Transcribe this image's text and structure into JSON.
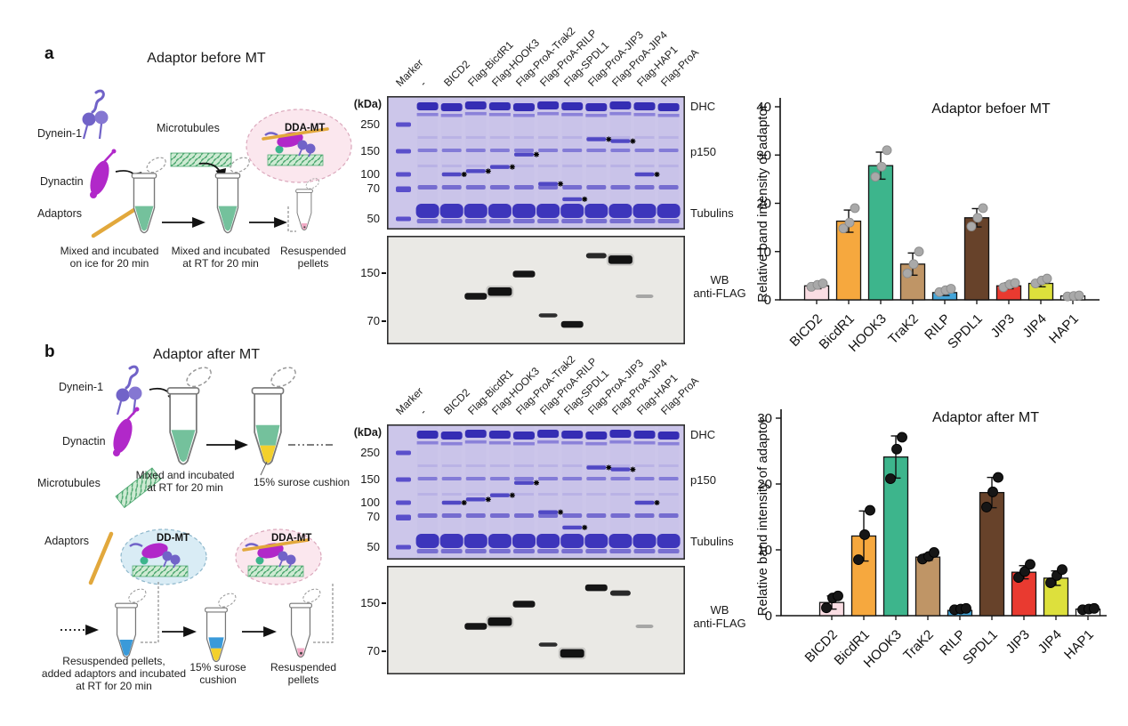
{
  "figure": {
    "panel_a": {
      "label": "a",
      "title": "Adaptor before MT",
      "schematic": {
        "component1": "Dynein-1",
        "component2": "Dynactin",
        "component3": "Adaptors",
        "microtubules": "Microtubules",
        "complex": "DDA-MT",
        "step1": "Mixed and incubated\non ice for 20 min",
        "step2": "Mixed and incubated\nat RT for 20 min",
        "step3": "Resuspended\npellets"
      },
      "gel": {
        "kda_unit": "(kDa)",
        "lane_labels": [
          "Marker",
          "-",
          "BICD2",
          "Flag-BicdR1",
          "Flag-HOOK3",
          "Flag-ProA-Trak2",
          "Flag-ProA-RILP",
          "Flag-SPDL1",
          "Flag-ProA-JIP3",
          "Flag-ProA-JIP4",
          "Flag-HAP1",
          "Flag-ProA"
        ],
        "coomassie_ticks": [
          250,
          150,
          100,
          70,
          50
        ],
        "band_labels": [
          "DHC",
          "p150",
          "Tubulins"
        ],
        "adaptor_bands": [
          {
            "lane": 2,
            "kda": 100
          },
          {
            "lane": 3,
            "kda": 107
          },
          {
            "lane": 4,
            "kda": 116
          },
          {
            "lane": 5,
            "kda": 143
          },
          {
            "lane": 6,
            "kda": 80
          },
          {
            "lane": 7,
            "kda": 63
          },
          {
            "lane": 8,
            "kda": 195
          },
          {
            "lane": 9,
            "kda": 188
          },
          {
            "lane": 10,
            "kda": 100
          }
        ],
        "wb_ticks": [
          150,
          70
        ],
        "wb_label": "WB\nanti-FLAG",
        "wb_bands": [
          {
            "lane": 3,
            "kda": 100,
            "s": "strong"
          },
          {
            "lane": 4,
            "kda": 110,
            "s": "wide"
          },
          {
            "lane": 5,
            "kda": 148,
            "s": "strong"
          },
          {
            "lane": 6,
            "kda": 77,
            "s": "thin"
          },
          {
            "lane": 7,
            "kda": 67,
            "s": "strong"
          },
          {
            "lane": 8,
            "kda": 193,
            "s": "medium"
          },
          {
            "lane": 9,
            "kda": 183,
            "s": "wide"
          },
          {
            "lane": 10,
            "kda": 100,
            "s": "faint"
          }
        ]
      }
    },
    "panel_b": {
      "label": "b",
      "title": "Adaptor after MT",
      "schematic": {
        "component1": "Dynein-1",
        "component2": "Dynactin",
        "component3": "Microtubules",
        "adaptors": "Adaptors",
        "complex1": "DD-MT",
        "complex2": "DDA-MT",
        "step1": "Mixed and incubated\nat RT for 20 min",
        "cushion1": "15% surose cushion",
        "step2": "Resuspended pellets,\nadded adaptors and incubated\nat RT for 20 min",
        "cushion2": "15% surose\ncushion",
        "step3": "Resuspended\npellets"
      },
      "gel": {
        "kda_unit": "(kDa)",
        "lane_labels": [
          "Marker",
          "-",
          "BICD2",
          "Flag-BicdR1",
          "Flag-HOOK3",
          "Flag-ProA-Trak2",
          "Flag-ProA-RILP",
          "Flag-SPDL1",
          "Flag-ProA-JIP3",
          "Flag-ProA-JIP4",
          "Flag-HAP1",
          "Flag-ProA"
        ],
        "coomassie_ticks": [
          250,
          150,
          100,
          70,
          50
        ],
        "band_labels": [
          "DHC",
          "p150",
          "Tubulins"
        ],
        "adaptor_bands": [
          {
            "lane": 2,
            "kda": 100
          },
          {
            "lane": 3,
            "kda": 107
          },
          {
            "lane": 4,
            "kda": 116
          },
          {
            "lane": 5,
            "kda": 143
          },
          {
            "lane": 6,
            "kda": 80
          },
          {
            "lane": 7,
            "kda": 63
          },
          {
            "lane": 8,
            "kda": 195
          },
          {
            "lane": 9,
            "kda": 188
          },
          {
            "lane": 10,
            "kda": 100
          }
        ],
        "wb_ticks": [
          150,
          70
        ],
        "wb_label": "WB\nanti-FLAG",
        "wb_bands": [
          {
            "lane": 3,
            "kda": 100,
            "s": "strong"
          },
          {
            "lane": 4,
            "kda": 110,
            "s": "wide"
          },
          {
            "lane": 5,
            "kda": 148,
            "s": "strong"
          },
          {
            "lane": 6,
            "kda": 78,
            "s": "thin"
          },
          {
            "lane": 7,
            "kda": 68,
            "s": "wide"
          },
          {
            "lane": 8,
            "kda": 188,
            "s": "strong"
          },
          {
            "lane": 9,
            "kda": 175,
            "s": "medium"
          },
          {
            "lane": 10,
            "kda": 100,
            "s": "faint"
          }
        ]
      }
    }
  },
  "chart_data": [
    {
      "type": "bar",
      "title": "Adaptor befoer MT",
      "ylabel": "Relative band intensity of adaptor",
      "xlabel": "",
      "ylim": [
        0,
        40
      ],
      "yticks": [
        0,
        10,
        20,
        30,
        40
      ],
      "grid": false,
      "legend_position": "none",
      "categories": [
        "BICD2",
        "BicdR1",
        "HOOK3",
        "TraK2",
        "RILP",
        "SPDL1",
        "JIP3",
        "JIP4",
        "HAP1"
      ],
      "values": [
        2.9,
        16.3,
        27.8,
        7.4,
        1.5,
        17.0,
        2.9,
        3.4,
        0.8
      ],
      "errors": [
        0.6,
        2.3,
        2.8,
        2.3,
        0.6,
        1.9,
        0.6,
        0.7,
        0.2
      ],
      "points": [
        [
          2.7,
          3.1,
          3.4
        ],
        [
          14.8,
          16.0,
          19.0
        ],
        [
          25.5,
          27.6,
          31.0
        ],
        [
          5.5,
          7.4,
          10.0
        ],
        [
          1.6,
          2.0,
          2.3
        ],
        [
          15.2,
          17.0,
          19.0
        ],
        [
          2.6,
          3.2,
          3.5
        ],
        [
          3.4,
          4.0,
          4.4
        ],
        [
          0.7,
          0.8,
          0.9
        ]
      ],
      "bar_colors": [
        "#fadde3",
        "#f6a83e",
        "#3db58c",
        "#bf9566",
        "#44a5d9",
        "#67422a",
        "#e93a30",
        "#dde03c",
        "#ffffff"
      ],
      "point_color": "#a9a9a9",
      "point_edge": "#8c8c8c"
    },
    {
      "type": "bar",
      "title": "Adaptor after MT",
      "ylabel": "Relative band intensity of adaptor",
      "xlabel": "",
      "ylim": [
        0,
        30
      ],
      "yticks": [
        0,
        10,
        20,
        30
      ],
      "grid": false,
      "legend_position": "none",
      "categories": [
        "BICD2",
        "BicdR1",
        "HOOK3",
        "TraK2",
        "RILP",
        "SPDL1",
        "JIP3",
        "JIP4",
        "HAP1"
      ],
      "values": [
        2.0,
        12.1,
        24.1,
        8.9,
        0.8,
        18.7,
        6.6,
        5.7,
        1.0
      ],
      "errors": [
        1.0,
        3.8,
        3.2,
        0.5,
        0.3,
        2.3,
        1.0,
        1.1,
        0.15
      ],
      "points": [
        [
          1.2,
          2.7,
          3.0
        ],
        [
          8.5,
          12.3,
          16.0
        ],
        [
          20.8,
          25.3,
          27.1
        ],
        [
          8.6,
          9.0,
          9.6
        ],
        [
          0.9,
          1.0,
          1.1
        ],
        [
          16.5,
          18.8,
          21.0
        ],
        [
          5.8,
          6.7,
          7.8
        ],
        [
          5.0,
          6.1,
          7.0
        ],
        [
          0.9,
          1.0,
          1.1
        ]
      ],
      "bar_colors": [
        "#fadde3",
        "#f6a83e",
        "#3db58c",
        "#bf9566",
        "#44a5d9",
        "#67422a",
        "#e93a30",
        "#dde03c",
        "#ffffff"
      ],
      "point_color": "#161616",
      "point_edge": "#000000"
    }
  ],
  "palette": {
    "dynein": "#7163c8",
    "dynactin": "#b128c9",
    "adaptor": "#e2a83c",
    "microtubule": "#49a56d",
    "microtubule_bg": "#cdead2",
    "liquid_green": "#74c19c",
    "liquid_yellow": "#f3d02c",
    "liquid_blue": "#3a9ad9",
    "liquid_pink": "#f2a9c5",
    "dd_mt_bubble": "#d9ecf5",
    "dda_mt_bubble": "#fbe7ee",
    "gel_bg": "#ccc6ea",
    "gel_band": "#4a42c0",
    "wb_bg": "#eae9e5"
  }
}
